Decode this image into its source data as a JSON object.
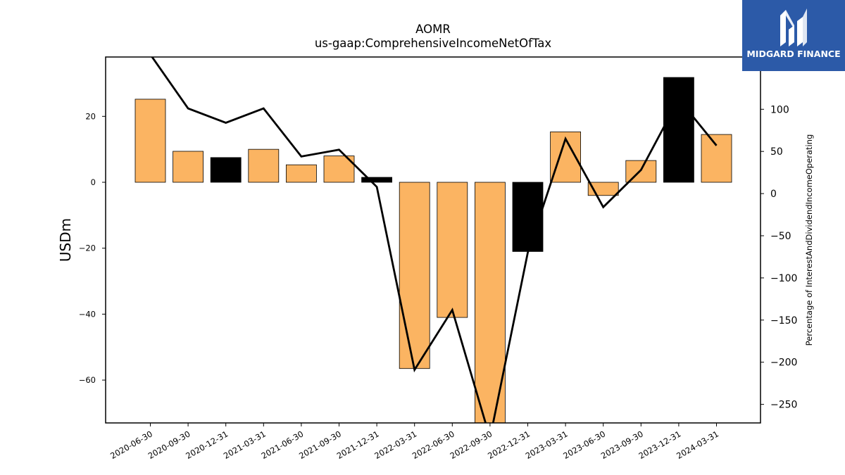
{
  "title_line1": "AOMR",
  "title_line2": "us-gaap:ComprehensiveIncomeNetOfTax",
  "logo_text": "MIDGARD FINANCE",
  "logo_icon": "midgard-logo-icon",
  "colors": {
    "positive_bar": "#fbb462",
    "highlight_bar": "#000000",
    "line": "#000000",
    "logo_bg": "#2c5aa8"
  },
  "chart_data": {
    "type": "bar",
    "categories": [
      "2020-06-30",
      "2020-09-30",
      "2020-12-31",
      "2021-03-31",
      "2021-06-30",
      "2021-09-30",
      "2021-12-31",
      "2022-03-31",
      "2022-06-30",
      "2022-09-30",
      "2022-12-31",
      "2023-03-31",
      "2023-06-30",
      "2023-09-30",
      "2023-12-31",
      "2024-03-31"
    ],
    "series": [
      {
        "axis": "left",
        "values": [
          25.2,
          9.4,
          7.5,
          10.0,
          5.3,
          8.0,
          1.5,
          -56.5,
          -41.0,
          -75.0,
          -21.0,
          15.3,
          -4.0,
          6.6,
          31.8,
          14.5
        ],
        "bar_colors": [
          "#fbb462",
          "#fbb462",
          "#000000",
          "#fbb462",
          "#fbb462",
          "#fbb462",
          "#000000",
          "#fbb462",
          "#fbb462",
          "#fbb462",
          "#000000",
          "#fbb462",
          "#fbb462",
          "#fbb462",
          "#000000",
          "#fbb462"
        ]
      },
      {
        "axis": "right",
        "type": "line",
        "values": [
          165,
          101,
          84,
          101,
          44,
          52,
          8,
          -209,
          -138,
          -290,
          -70,
          65,
          -16,
          28,
          112,
          57
        ]
      }
    ],
    "ylabel": "USDm",
    "y2label": "Percentage of InterestAndDividendIncomeOperating",
    "ylim": [
      -73,
      38
    ],
    "y2lim": [
      -272,
      162
    ],
    "yticks": [
      -60,
      -40,
      -20,
      0,
      20
    ],
    "y2ticks": [
      -250,
      -200,
      -150,
      -100,
      -50,
      0,
      50,
      100
    ],
    "ytick_labels": [
      "−60",
      "−40",
      "−20",
      "0",
      "20"
    ],
    "y2tick_labels": [
      "−250",
      "−200",
      "−150",
      "−100",
      "−50",
      "0",
      "50",
      "100"
    ]
  }
}
